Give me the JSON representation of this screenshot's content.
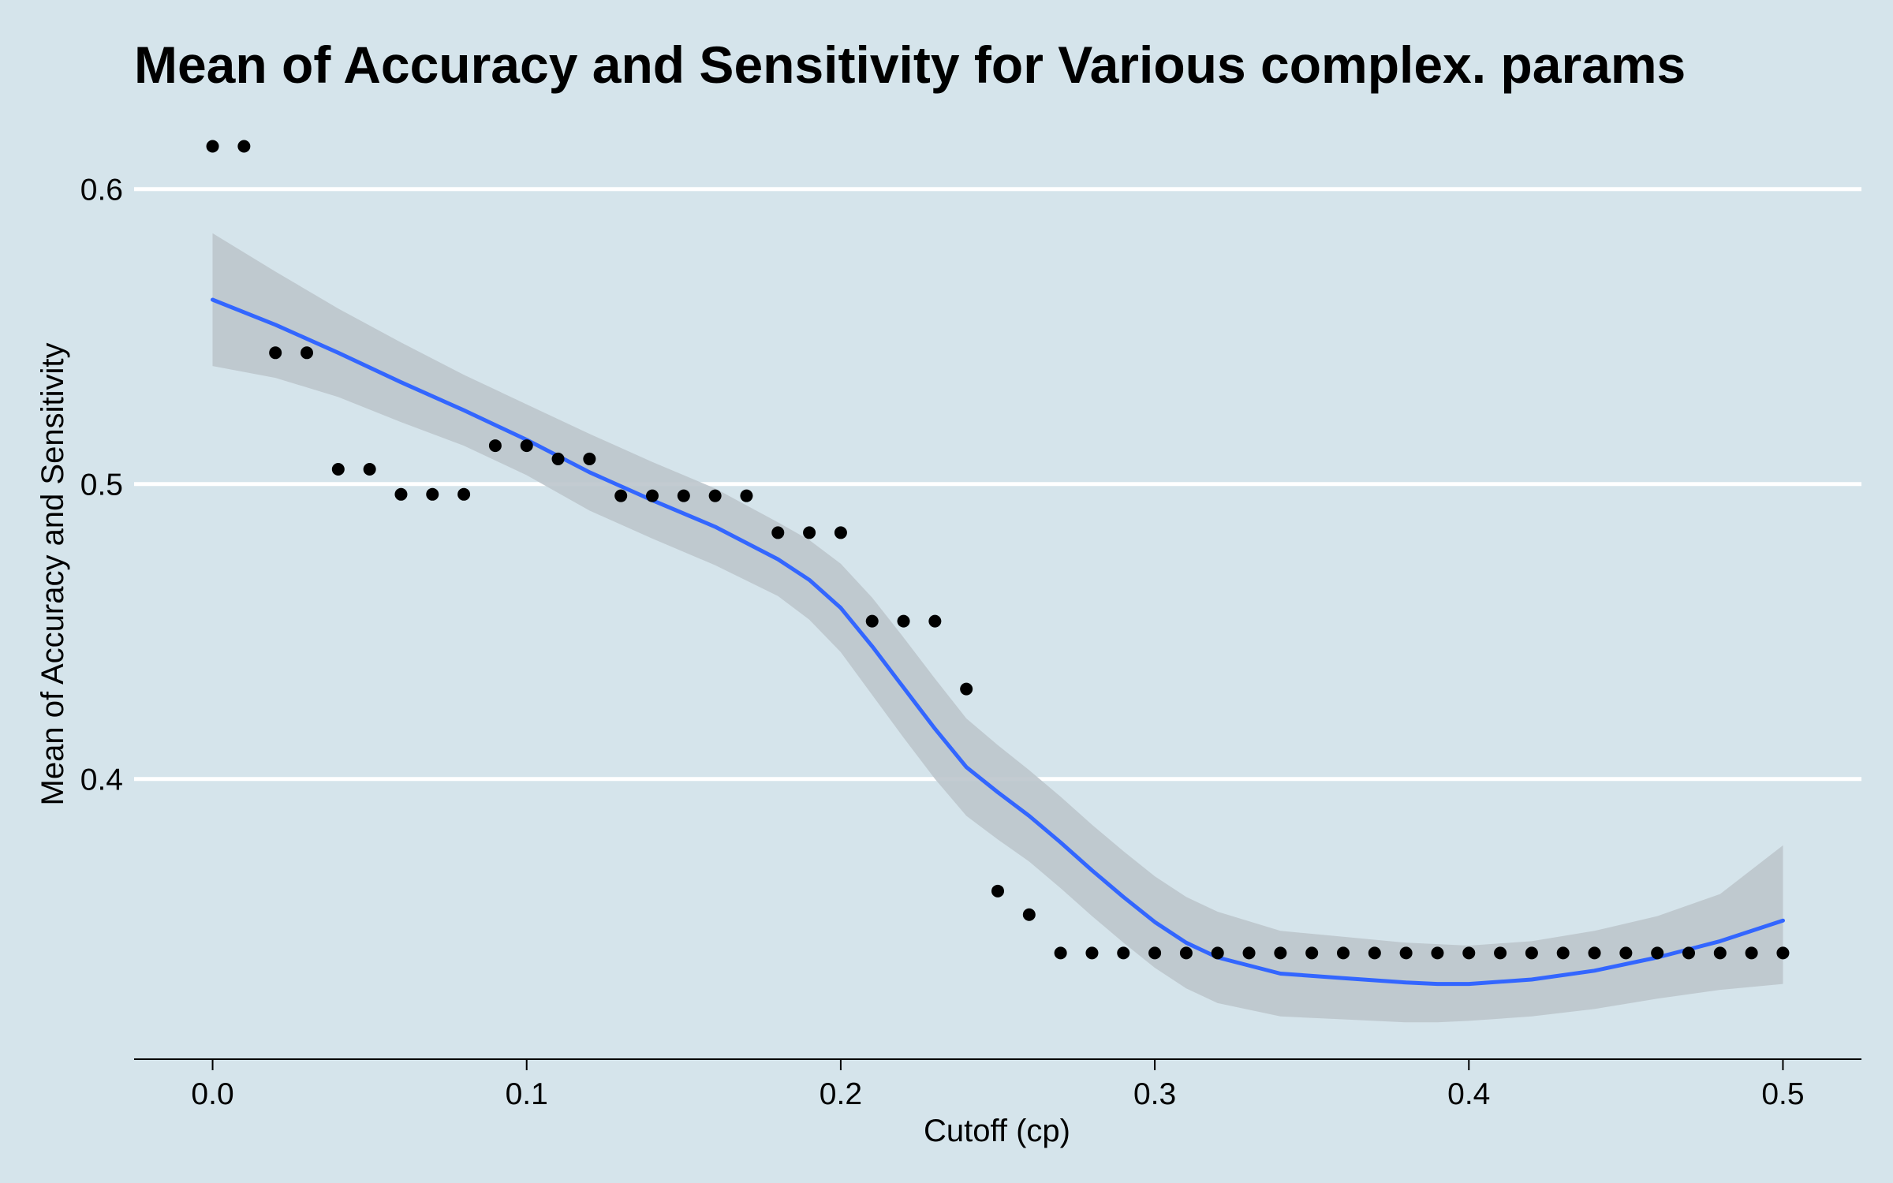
{
  "chart_data": {
    "type": "scatter",
    "title": "Mean of Accuracy and Sensitivity for Various complex. params",
    "xlabel": "Cutoff (cp)",
    "ylabel": "Mean of Accuracy and Sensitivity",
    "xlim": [
      -0.025,
      0.525
    ],
    "ylim": [
      0.305,
      0.628
    ],
    "x_ticks": [
      0.0,
      0.1,
      0.2,
      0.3,
      0.4,
      0.5
    ],
    "x_tick_labels": [
      "0.0",
      "0.1",
      "0.2",
      "0.3",
      "0.4",
      "0.5"
    ],
    "y_ticks": [
      0.4,
      0.5,
      0.6
    ],
    "y_tick_labels": [
      "0.4",
      "0.5",
      "0.6"
    ],
    "grid": "horizontal major lines",
    "legend": "none",
    "colors": {
      "background": "#d5e4eb",
      "points": "#000000",
      "smooth_line": "#3366ff",
      "confidence_band": "#bcc5cc",
      "grid": "#ffffff"
    },
    "series": [
      {
        "type": "points",
        "x": [
          0.0,
          0.01,
          0.02,
          0.03,
          0.04,
          0.05,
          0.06,
          0.07,
          0.08,
          0.09,
          0.1,
          0.11,
          0.12,
          0.13,
          0.14,
          0.15,
          0.16,
          0.17,
          0.18,
          0.19,
          0.2,
          0.21,
          0.22,
          0.23,
          0.24,
          0.25,
          0.26,
          0.27,
          0.28,
          0.29,
          0.3,
          0.31,
          0.32,
          0.33,
          0.34,
          0.35,
          0.36,
          0.37,
          0.38,
          0.39,
          0.4,
          0.41,
          0.42,
          0.43,
          0.44,
          0.45,
          0.46,
          0.47,
          0.48,
          0.49,
          0.5
        ],
        "y": [
          0.6145,
          0.6145,
          0.5445,
          0.5445,
          0.505,
          0.505,
          0.4965,
          0.4965,
          0.4965,
          0.513,
          0.513,
          0.5085,
          0.5085,
          0.496,
          0.496,
          0.496,
          0.496,
          0.496,
          0.4835,
          0.4835,
          0.4835,
          0.4535,
          0.4535,
          0.4535,
          0.4305,
          0.362,
          0.354,
          0.341,
          0.341,
          0.341,
          0.341,
          0.341,
          0.341,
          0.341,
          0.341,
          0.341,
          0.341,
          0.341,
          0.341,
          0.341,
          0.341,
          0.341,
          0.341,
          0.341,
          0.341,
          0.341,
          0.341,
          0.341,
          0.341,
          0.341,
          0.341
        ]
      },
      {
        "type": "smooth",
        "x": [
          0.0,
          0.02,
          0.04,
          0.06,
          0.08,
          0.1,
          0.12,
          0.14,
          0.16,
          0.18,
          0.19,
          0.2,
          0.21,
          0.22,
          0.23,
          0.24,
          0.25,
          0.26,
          0.27,
          0.28,
          0.29,
          0.3,
          0.31,
          0.32,
          0.34,
          0.36,
          0.38,
          0.39,
          0.4,
          0.42,
          0.44,
          0.46,
          0.48,
          0.5
        ],
        "y": [
          0.5625,
          0.554,
          0.5445,
          0.5345,
          0.525,
          0.515,
          0.504,
          0.4945,
          0.4855,
          0.4745,
          0.4675,
          0.458,
          0.445,
          0.431,
          0.417,
          0.404,
          0.3955,
          0.3875,
          0.3785,
          0.369,
          0.36,
          0.3515,
          0.3445,
          0.3395,
          0.334,
          0.3325,
          0.331,
          0.3305,
          0.3305,
          0.332,
          0.335,
          0.3395,
          0.345,
          0.352
        ],
        "band_lower": [
          0.54,
          0.536,
          0.5295,
          0.521,
          0.513,
          0.503,
          0.491,
          0.4815,
          0.4725,
          0.462,
          0.454,
          0.443,
          0.4285,
          0.414,
          0.4,
          0.3875,
          0.3795,
          0.372,
          0.363,
          0.3535,
          0.3445,
          0.336,
          0.329,
          0.324,
          0.3195,
          0.3185,
          0.3175,
          0.3175,
          0.318,
          0.3195,
          0.322,
          0.3255,
          0.3285,
          0.3305
        ],
        "band_upper": [
          0.585,
          0.572,
          0.5595,
          0.548,
          0.537,
          0.527,
          0.517,
          0.5075,
          0.4985,
          0.487,
          0.481,
          0.473,
          0.4615,
          0.448,
          0.434,
          0.4205,
          0.4115,
          0.403,
          0.394,
          0.3845,
          0.3755,
          0.367,
          0.36,
          0.355,
          0.3485,
          0.3465,
          0.3445,
          0.344,
          0.3435,
          0.345,
          0.3485,
          0.3535,
          0.361,
          0.3775
        ]
      }
    ]
  }
}
